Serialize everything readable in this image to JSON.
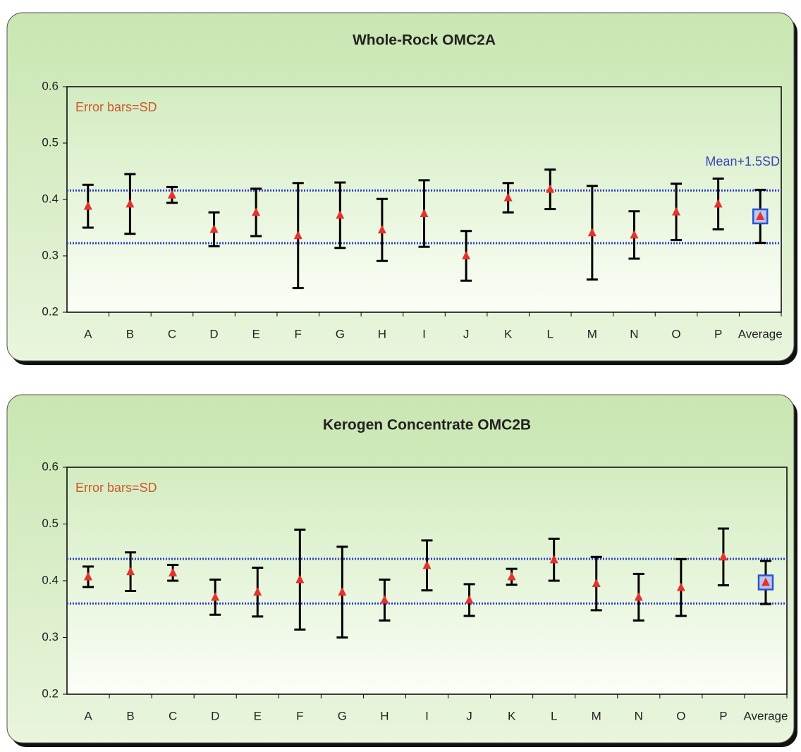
{
  "chart_data": [
    {
      "type": "errorbar",
      "title": "Whole-Rock OMC2A",
      "annotation": "Error bars=SD",
      "categories": [
        "A",
        "B",
        "C",
        "D",
        "E",
        "F",
        "G",
        "H",
        "I",
        "J",
        "K",
        "L",
        "M",
        "N",
        "O",
        "P",
        "Average"
      ],
      "values": [
        0.388,
        0.392,
        0.408,
        0.347,
        0.377,
        0.336,
        0.372,
        0.346,
        0.375,
        0.3,
        0.403,
        0.418,
        0.341,
        0.337,
        0.378,
        0.392,
        0.37
      ],
      "errors": [
        0.038,
        0.053,
        0.014,
        0.03,
        0.042,
        0.093,
        0.058,
        0.055,
        0.059,
        0.044,
        0.026,
        0.035,
        0.083,
        0.042,
        0.05,
        0.045,
        0.047
      ],
      "color": "#e8312a",
      "ylim": [
        0.2,
        0.6
      ],
      "yticks": [
        0.2,
        0.3,
        0.4,
        0.5,
        0.6
      ],
      "reference_lines": [
        {
          "value": 0.416,
          "label": "Mean+1.5SD"
        },
        {
          "value": 0.3225
        }
      ]
    },
    {
      "type": "errorbar",
      "title": "Kerogen Concentrate OMC2B",
      "annotation": "Error bars=SD",
      "categories": [
        "A",
        "B",
        "C",
        "D",
        "E",
        "F",
        "G",
        "H",
        "I",
        "J",
        "K",
        "L",
        "M",
        "N",
        "O",
        "P",
        "Average"
      ],
      "values": [
        0.407,
        0.416,
        0.414,
        0.371,
        0.38,
        0.402,
        0.38,
        0.366,
        0.427,
        0.366,
        0.407,
        0.437,
        0.395,
        0.371,
        0.388,
        0.442,
        0.397
      ],
      "errors": [
        0.018,
        0.034,
        0.014,
        0.031,
        0.043,
        0.088,
        0.08,
        0.036,
        0.044,
        0.028,
        0.014,
        0.037,
        0.047,
        0.041,
        0.05,
        0.05,
        0.038
      ],
      "color": "#e8312a",
      "ylim": [
        0.2,
        0.6
      ],
      "yticks": [
        0.2,
        0.3,
        0.4,
        0.5,
        0.6
      ],
      "reference_lines": [
        {
          "value": 0.4385
        },
        {
          "value": 0.36
        }
      ]
    }
  ]
}
